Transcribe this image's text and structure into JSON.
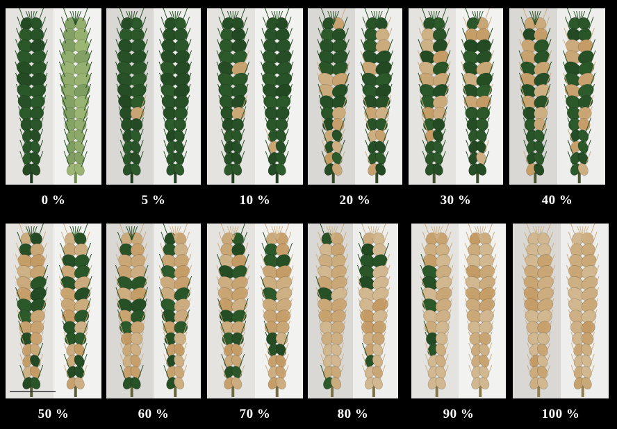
{
  "severity_labels": [
    [
      "0 %",
      "5 %",
      "10 %",
      "20 %",
      "30 %",
      "40 %"
    ],
    [
      "50 %",
      "60 %",
      "70 %",
      "80 %",
      "90 %",
      "100 %"
    ]
  ],
  "colors": {
    "background": "#000000",
    "label_text": "#ffffff",
    "healthy_green": "#2d5b2b",
    "light_green": "#9fb876",
    "infected_tan": "#c49a63",
    "bleached": "#ddd6bd"
  }
}
